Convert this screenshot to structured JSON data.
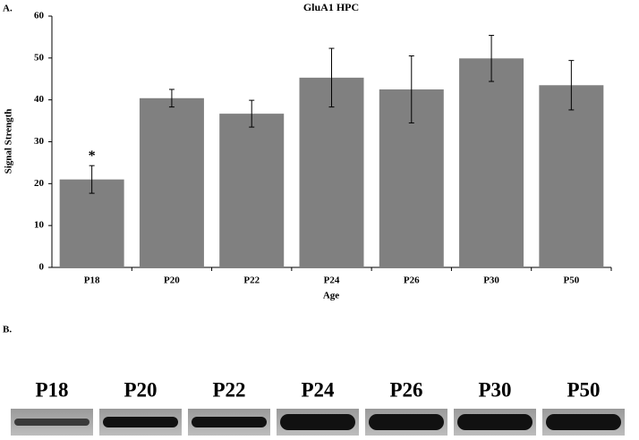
{
  "chart_data": {
    "type": "bar",
    "title": "GluA1 HPC",
    "panel_label": "A.",
    "blot_panel_label": "B.",
    "x_label": "Age",
    "y_label": "Signal Strength",
    "categories": [
      "P18",
      "P20",
      "P22",
      "P24",
      "P26",
      "P30",
      "P50"
    ],
    "values": [
      21,
      40.4,
      36.7,
      45.3,
      42.5,
      49.9,
      43.5
    ],
    "errors": [
      3.3,
      2.1,
      3.2,
      7,
      8,
      5.5,
      5.9
    ],
    "color": "#808080",
    "ylim": [
      0,
      60
    ],
    "yticks": [
      0,
      10,
      20,
      30,
      40,
      50,
      60
    ],
    "grid": false,
    "annotations": [
      {
        "text": "*",
        "category": "P18"
      }
    ]
  }
}
